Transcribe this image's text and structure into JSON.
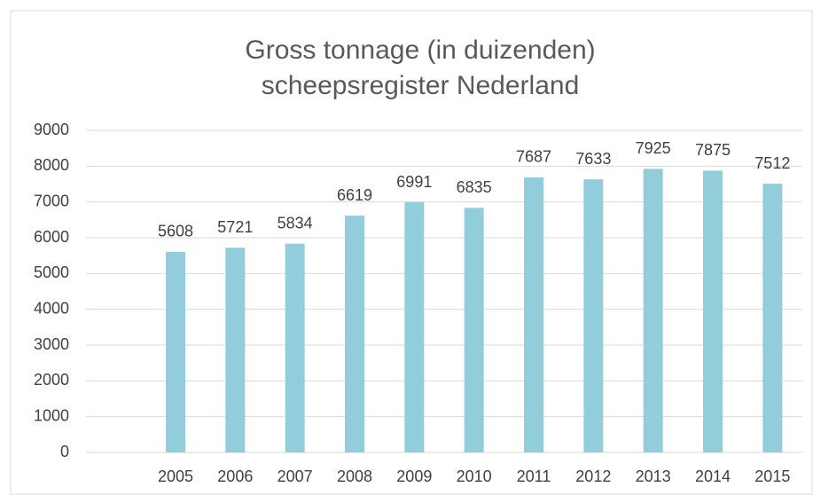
{
  "chart_data": {
    "type": "bar",
    "title": [
      "Gross tonnage (in duizenden)",
      "scheepsregister Nederland"
    ],
    "categories": [
      null,
      "2005",
      "2006",
      "2007",
      "2008",
      "2009",
      "2010",
      "2011",
      "2012",
      "2013",
      "2014",
      "2015"
    ],
    "values": [
      null,
      5608,
      5721,
      5834,
      6619,
      6991,
      6835,
      7687,
      7633,
      7925,
      7875,
      7512
    ],
    "color": "#92cddc",
    "ylim": [
      0,
      9000
    ],
    "yticks": [
      0,
      1000,
      2000,
      3000,
      4000,
      5000,
      6000,
      7000,
      8000,
      9000
    ],
    "grid": true
  }
}
